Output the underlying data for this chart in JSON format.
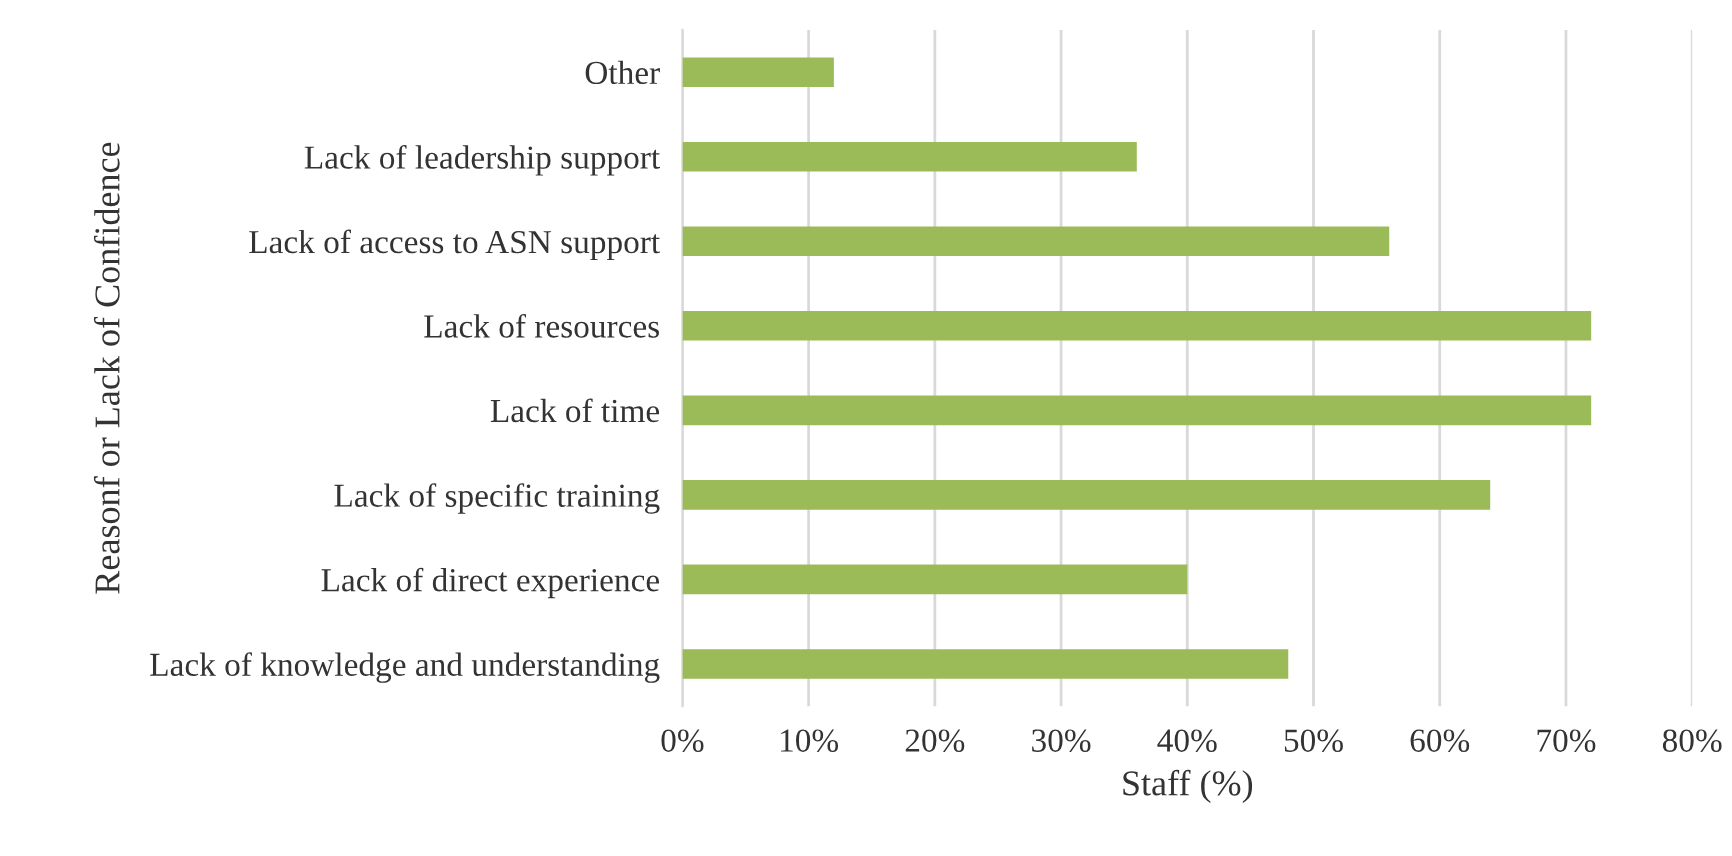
{
  "chart_data": {
    "type": "bar",
    "orientation": "horizontal",
    "xlabel": "Staff (%)",
    "ylabel": "Reasonf or Lack of Confidence",
    "categories": [
      "Other",
      "Lack of leadership support",
      "Lack of access to ASN support",
      "Lack of resources",
      "Lack of time",
      "Lack of specific training",
      "Lack of direct experience",
      "Lack of knowledge and understanding"
    ],
    "values": [
      12,
      36,
      56,
      72,
      72,
      64,
      40,
      48
    ],
    "color": "#9bbb59",
    "xlim": [
      0,
      80
    ],
    "xticks": [
      {
        "value": 0,
        "label": "0%"
      },
      {
        "value": 10,
        "label": "10%"
      },
      {
        "value": 20,
        "label": "20%"
      },
      {
        "value": 30,
        "label": "30%"
      },
      {
        "value": 40,
        "label": "40%"
      },
      {
        "value": 50,
        "label": "50%"
      },
      {
        "value": 60,
        "label": "60%"
      },
      {
        "value": 70,
        "label": "70%"
      },
      {
        "value": 80,
        "label": "80%"
      }
    ],
    "grid": "x"
  }
}
